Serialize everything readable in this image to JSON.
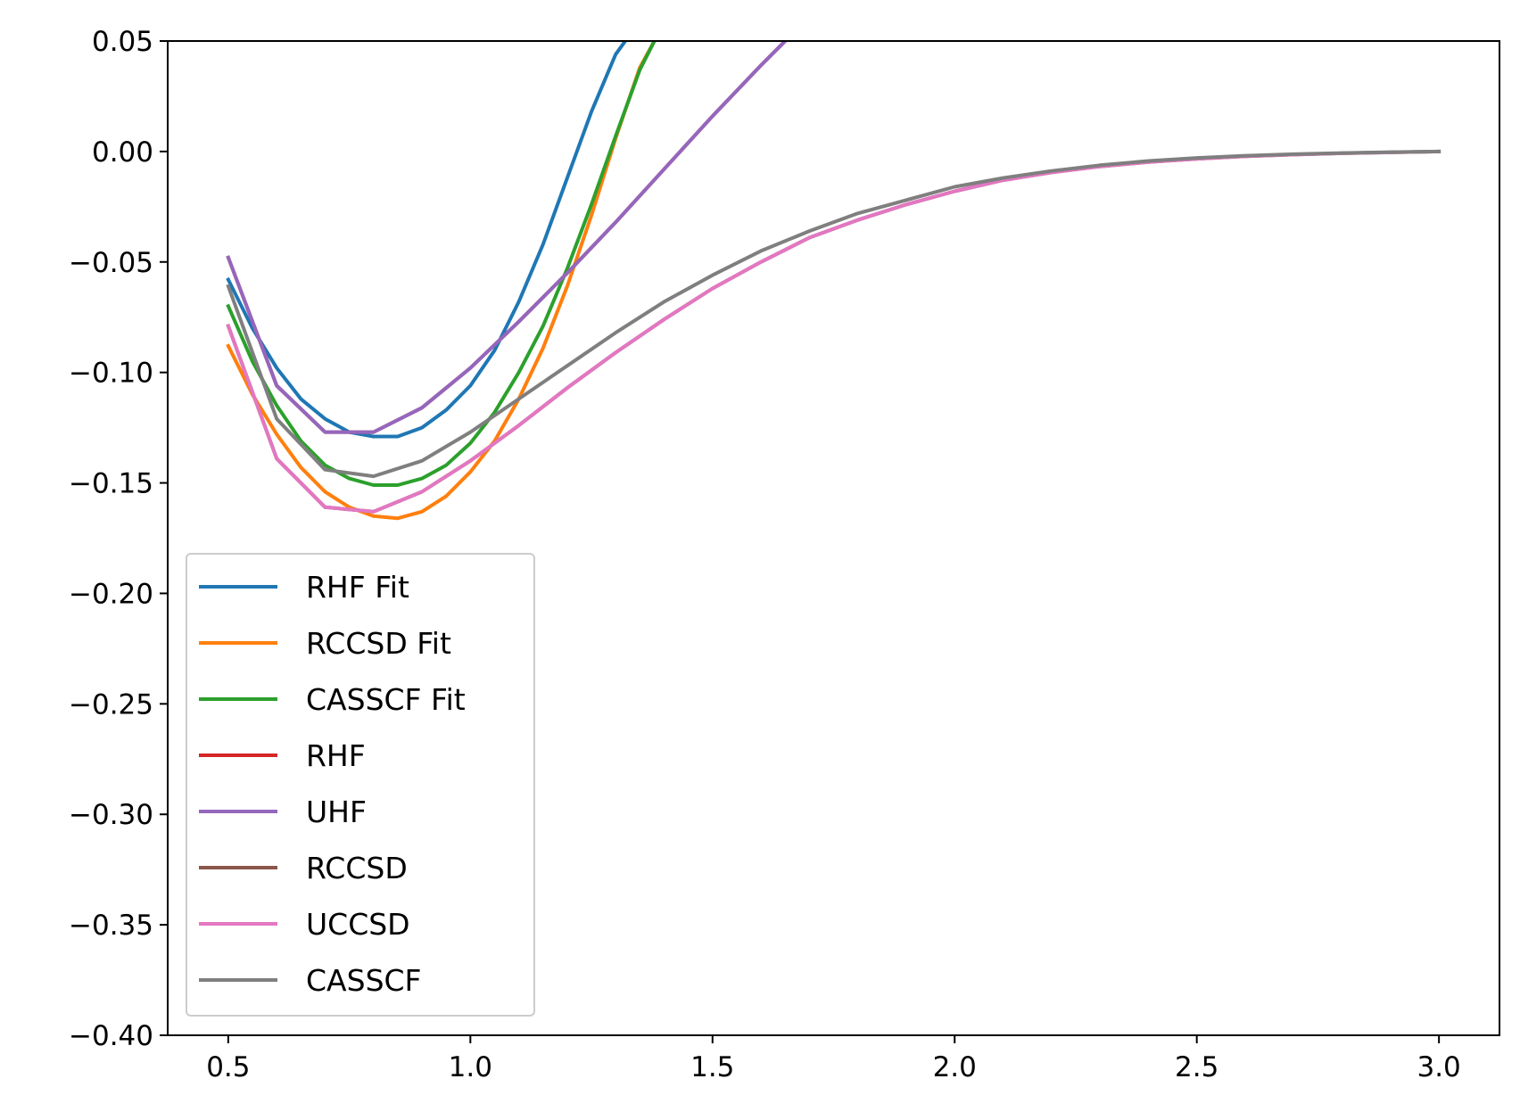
{
  "chart_data": {
    "type": "line",
    "title": "",
    "xlabel": "",
    "ylabel": "",
    "xlim": [
      0.375,
      3.125
    ],
    "ylim": [
      -0.4,
      0.05
    ],
    "xticks": [
      0.5,
      1.0,
      1.5,
      2.0,
      2.5,
      3.0
    ],
    "xtick_labels": [
      "0.5",
      "1.0",
      "1.5",
      "2.0",
      "2.5",
      "3.0"
    ],
    "yticks": [
      0.05,
      0.0,
      -0.05,
      -0.1,
      -0.15,
      -0.2,
      -0.25,
      -0.3,
      -0.35,
      -0.4
    ],
    "ytick_labels": [
      "0.05",
      "0.00",
      "−0.05",
      "−0.10",
      "−0.15",
      "−0.20",
      "−0.25",
      "−0.30",
      "−0.35",
      "−0.40"
    ],
    "grid": false,
    "legend_position": "lower-left",
    "series": [
      {
        "name": "RHF Fit",
        "color": "#1f77b4",
        "x": [
          0.5,
          0.55,
          0.6,
          0.65,
          0.7,
          0.75,
          0.8,
          0.85,
          0.9,
          0.95,
          1.0,
          1.05,
          1.1,
          1.15,
          1.2,
          1.25,
          1.3,
          1.32
        ],
        "y": [
          -0.058,
          -0.08,
          -0.098,
          -0.112,
          -0.121,
          -0.127,
          -0.129,
          -0.129,
          -0.125,
          -0.117,
          -0.106,
          -0.09,
          -0.068,
          -0.042,
          -0.012,
          0.018,
          0.044,
          0.05
        ]
      },
      {
        "name": "RCCSD Fit",
        "color": "#ff7f0e",
        "x": [
          0.5,
          0.55,
          0.6,
          0.65,
          0.7,
          0.75,
          0.8,
          0.85,
          0.9,
          0.95,
          1.0,
          1.05,
          1.1,
          1.15,
          1.2,
          1.25,
          1.3,
          1.35,
          1.38
        ],
        "y": [
          -0.088,
          -0.11,
          -0.128,
          -0.143,
          -0.154,
          -0.161,
          -0.165,
          -0.166,
          -0.163,
          -0.156,
          -0.145,
          -0.131,
          -0.112,
          -0.089,
          -0.061,
          -0.029,
          0.006,
          0.038,
          0.05
        ]
      },
      {
        "name": "CASSCF Fit",
        "color": "#2ca02c",
        "x": [
          0.5,
          0.55,
          0.6,
          0.65,
          0.7,
          0.75,
          0.8,
          0.85,
          0.9,
          0.95,
          1.0,
          1.05,
          1.1,
          1.15,
          1.2,
          1.25,
          1.3,
          1.35,
          1.38
        ],
        "y": [
          -0.07,
          -0.095,
          -0.115,
          -0.131,
          -0.142,
          -0.148,
          -0.151,
          -0.151,
          -0.148,
          -0.142,
          -0.132,
          -0.118,
          -0.1,
          -0.079,
          -0.053,
          -0.024,
          0.007,
          0.037,
          0.05
        ]
      },
      {
        "name": "RHF",
        "color": "#d62728",
        "x": [
          0.5,
          0.6,
          0.7,
          0.8,
          0.9,
          1.0,
          1.1,
          1.2,
          1.3,
          1.4,
          1.5,
          1.6,
          1.7,
          1.8
        ],
        "y": [
          -0.048,
          -0.106,
          -0.127,
          -0.127,
          -0.116,
          -0.098,
          -0.077,
          -0.055,
          -0.032,
          -0.008,
          0.016,
          0.039,
          0.061,
          0.083
        ]
      },
      {
        "name": "UHF",
        "color": "#9467bd",
        "x": [
          0.5,
          0.6,
          0.7,
          0.8,
          0.9,
          1.0,
          1.1,
          1.2,
          1.3,
          1.4,
          1.5,
          1.6,
          1.7,
          1.8
        ],
        "y": [
          -0.048,
          -0.106,
          -0.127,
          -0.127,
          -0.116,
          -0.098,
          -0.077,
          -0.055,
          -0.032,
          -0.008,
          0.016,
          0.039,
          0.061,
          0.083
        ]
      },
      {
        "name": "RCCSD",
        "color": "#8c564b",
        "x": [
          0.5,
          0.6,
          0.7,
          0.8,
          0.9,
          1.0,
          1.1,
          1.2,
          1.3,
          1.4,
          1.5,
          1.6,
          1.7,
          1.8,
          1.9,
          2.0,
          2.1,
          2.2,
          2.3,
          2.4,
          2.5,
          2.6,
          2.7,
          2.8,
          2.9,
          3.0
        ],
        "y": [
          -0.079,
          -0.139,
          -0.161,
          -0.163,
          -0.154,
          -0.14,
          -0.124,
          -0.107,
          -0.091,
          -0.076,
          -0.062,
          -0.05,
          -0.039,
          -0.031,
          -0.024,
          -0.018,
          -0.013,
          -0.0095,
          -0.0068,
          -0.0048,
          -0.0033,
          -0.0022,
          -0.0014,
          -0.0008,
          -0.0004,
          0.0
        ]
      },
      {
        "name": "UCCSD",
        "color": "#e377c2",
        "x": [
          0.5,
          0.6,
          0.7,
          0.8,
          0.9,
          1.0,
          1.1,
          1.2,
          1.3,
          1.4,
          1.5,
          1.6,
          1.7,
          1.8,
          1.9,
          2.0,
          2.1,
          2.2,
          2.3,
          2.4,
          2.5,
          2.6,
          2.7,
          2.8,
          2.9,
          3.0
        ],
        "y": [
          -0.079,
          -0.139,
          -0.161,
          -0.163,
          -0.154,
          -0.14,
          -0.124,
          -0.107,
          -0.091,
          -0.076,
          -0.062,
          -0.05,
          -0.039,
          -0.031,
          -0.024,
          -0.018,
          -0.013,
          -0.0095,
          -0.0068,
          -0.0048,
          -0.0033,
          -0.0022,
          -0.0014,
          -0.0008,
          -0.0004,
          0.0
        ]
      },
      {
        "name": "CASSCF",
        "color": "#7f7f7f",
        "x": [
          0.5,
          0.6,
          0.7,
          0.8,
          0.9,
          1.0,
          1.1,
          1.2,
          1.3,
          1.4,
          1.5,
          1.6,
          1.7,
          1.8,
          1.9,
          2.0,
          2.1,
          2.2,
          2.3,
          2.4,
          2.5,
          2.6,
          2.7,
          2.8,
          2.9,
          3.0
        ],
        "y": [
          -0.061,
          -0.121,
          -0.144,
          -0.147,
          -0.14,
          -0.127,
          -0.112,
          -0.097,
          -0.082,
          -0.068,
          -0.056,
          -0.045,
          -0.036,
          -0.028,
          -0.022,
          -0.016,
          -0.012,
          -0.0088,
          -0.0062,
          -0.0043,
          -0.0029,
          -0.0019,
          -0.0012,
          -0.0007,
          -0.0003,
          0.0
        ]
      }
    ]
  }
}
